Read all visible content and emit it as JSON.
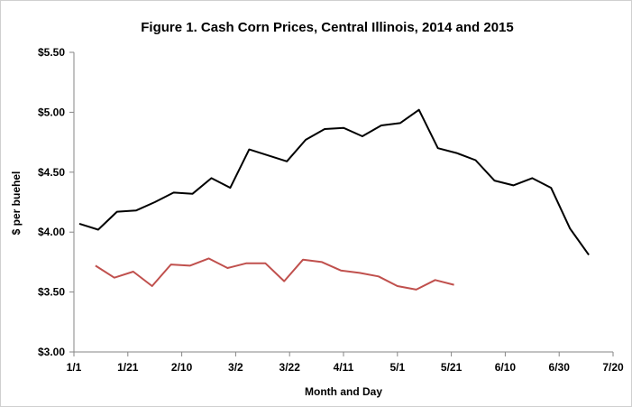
{
  "chart_data": {
    "type": "line",
    "title": "Figure 1.  Cash Corn Prices, Central Illinois,  2014 and 2015",
    "xlabel": "Month  and Day",
    "ylabel": "$ per buehel",
    "xlim": [
      1,
      201
    ],
    "ylim": [
      3.0,
      5.5
    ],
    "x_ticks": [
      {
        "value": 1,
        "label": "1/1"
      },
      {
        "value": 21,
        "label": "1/21"
      },
      {
        "value": 41,
        "label": "2/10"
      },
      {
        "value": 61,
        "label": "3/2"
      },
      {
        "value": 81,
        "label": "3/22"
      },
      {
        "value": 101,
        "label": "4/11"
      },
      {
        "value": 121,
        "label": "5/1"
      },
      {
        "value": 141,
        "label": "5/21"
      },
      {
        "value": 161,
        "label": "6/10"
      },
      {
        "value": 181,
        "label": "6/30"
      },
      {
        "value": 201,
        "label": "7/20"
      }
    ],
    "y_ticks": [
      {
        "value": 3.0,
        "label": "$3.00"
      },
      {
        "value": 3.5,
        "label": "$3.50"
      },
      {
        "value": 4.0,
        "label": "$4.00"
      },
      {
        "value": 4.5,
        "label": "$4.50"
      },
      {
        "value": 5.0,
        "label": "$5.00"
      },
      {
        "value": 5.5,
        "label": "$5.50"
      }
    ],
    "grid": false,
    "legend": "none",
    "series": [
      {
        "color": "#000000",
        "x": [
          3,
          10,
          17,
          24,
          31,
          38,
          45,
          52,
          59,
          66,
          73,
          80,
          87,
          94,
          101,
          108,
          115,
          122,
          129,
          136,
          143,
          150,
          157,
          164,
          171,
          178,
          185,
          192
        ],
        "y": [
          4.07,
          4.02,
          4.17,
          4.18,
          4.25,
          4.33,
          4.32,
          4.45,
          4.37,
          4.69,
          4.64,
          4.59,
          4.77,
          4.86,
          4.87,
          4.8,
          4.89,
          4.91,
          5.02,
          4.7,
          4.66,
          4.6,
          4.43,
          4.39,
          4.45,
          4.37,
          4.03,
          3.81
        ]
      },
      {
        "color": "#c0504d",
        "x": [
          9,
          16,
          23,
          30,
          37,
          44,
          51,
          58,
          65,
          72,
          79,
          86,
          93,
          100,
          107,
          114,
          121,
          128,
          135,
          142
        ],
        "y": [
          3.72,
          3.62,
          3.67,
          3.55,
          3.73,
          3.72,
          3.78,
          3.7,
          3.74,
          3.74,
          3.59,
          3.77,
          3.75,
          3.68,
          3.66,
          3.63,
          3.55,
          3.52,
          3.6,
          3.56
        ]
      }
    ]
  }
}
